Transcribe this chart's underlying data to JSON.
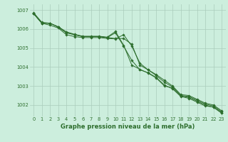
{
  "title": "Graphe pression niveau de la mer (hPa)",
  "background_color": "#cceedd",
  "grid_color": "#aaccbb",
  "line_color": "#2d6e2d",
  "xlim": [
    -0.5,
    23.5
  ],
  "ylim": [
    1001.4,
    1007.3
  ],
  "yticks": [
    1002,
    1003,
    1004,
    1005,
    1006,
    1007
  ],
  "xticks": [
    0,
    1,
    2,
    3,
    4,
    5,
    6,
    7,
    8,
    9,
    10,
    11,
    12,
    13,
    14,
    15,
    16,
    17,
    18,
    19,
    20,
    21,
    22,
    23
  ],
  "series": [
    [
      1006.8,
      1006.3,
      1006.3,
      1006.1,
      1005.8,
      1005.7,
      1005.6,
      1005.6,
      1005.6,
      1005.55,
      1005.5,
      1005.5,
      1005.2,
      1004.1,
      1003.85,
      1003.6,
      1003.3,
      1003.0,
      1002.55,
      1002.5,
      1002.3,
      1002.1,
      1002.0,
      1001.7
    ],
    [
      1006.8,
      1006.3,
      1006.2,
      1006.05,
      1005.7,
      1005.6,
      1005.55,
      1005.55,
      1005.55,
      1005.5,
      1005.48,
      1005.7,
      1005.1,
      1004.2,
      1003.85,
      1003.55,
      1003.2,
      1002.95,
      1002.5,
      1002.45,
      1002.25,
      1002.05,
      1001.95,
      1001.65
    ],
    [
      1006.8,
      1006.3,
      1006.3,
      1006.1,
      1005.8,
      1005.7,
      1005.6,
      1005.6,
      1005.6,
      1005.55,
      1005.8,
      1005.1,
      1004.35,
      1003.85,
      1003.7,
      1003.45,
      1003.05,
      1002.85,
      1002.45,
      1002.35,
      1002.15,
      1001.95,
      1001.9,
      1001.6
    ],
    [
      1006.85,
      1006.35,
      1006.3,
      1006.12,
      1005.85,
      1005.72,
      1005.62,
      1005.62,
      1005.62,
      1005.57,
      1005.87,
      1005.15,
      1004.1,
      1003.88,
      1003.68,
      1003.42,
      1003.0,
      1002.9,
      1002.48,
      1002.4,
      1002.2,
      1002.0,
      1001.88,
      1001.57
    ]
  ],
  "title_fontsize": 6.0,
  "tick_fontsize": 4.8,
  "linewidth": 0.7,
  "markersize": 1.8
}
